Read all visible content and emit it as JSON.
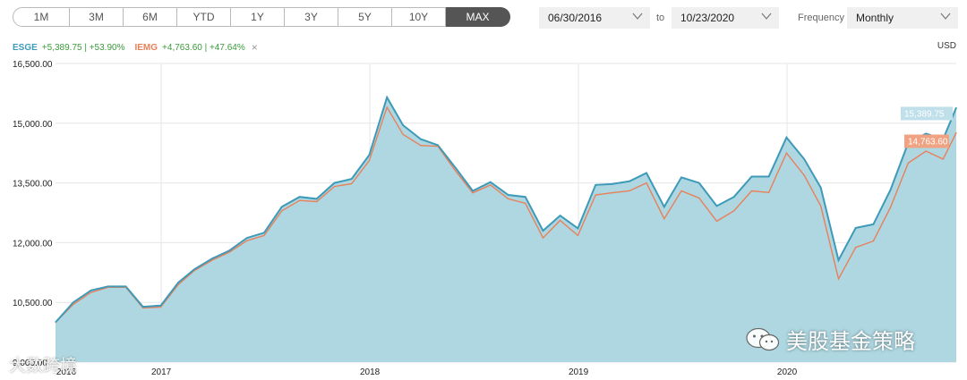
{
  "range_buttons": [
    "1M",
    "3M",
    "6M",
    "YTD",
    "1Y",
    "3Y",
    "5Y",
    "10Y",
    "MAX"
  ],
  "active_range": "MAX",
  "date_from": "06/30/2016",
  "to_label": "to",
  "date_to": "10/23/2020",
  "frequency_label": "Frequency",
  "frequency_value": "Monthly",
  "currency": "USD",
  "legend": {
    "esge_name": "ESGE",
    "esge_stats": "+5,389.75 | +53.90%",
    "iemg_name": "IEMG",
    "iemg_stats": "+4,763.60 | +47.64%",
    "close_symbol": "×"
  },
  "watermark": {
    "left_text": "大数跨境",
    "right_text": "美股基金策略"
  },
  "colors": {
    "esge": "#3d9ab8",
    "iemg": "#e8805a",
    "area": "#aed7e1"
  },
  "chart_data": {
    "type": "area",
    "ylim": [
      9000,
      16500
    ],
    "y_ticks": [
      9000,
      10500,
      12000,
      13500,
      15000,
      16500
    ],
    "y_tick_labels": [
      "9,000.00",
      "10,500.00",
      "12,000.00",
      "13,500.00",
      "15,000.00",
      "16,500.00"
    ],
    "x_tick_labels": [
      "2016",
      "2017",
      "2018",
      "2019",
      "2020"
    ],
    "x_tick_dates": [
      "2016-06-30",
      "2017-01-01",
      "2018-01-01",
      "2019-01-01",
      "2020-01-01"
    ],
    "xlim": [
      "2016-06-30",
      "2020-10-23"
    ],
    "dates": [
      "2016-06-30",
      "2016-07-31",
      "2016-08-31",
      "2016-09-30",
      "2016-10-31",
      "2016-11-30",
      "2016-12-31",
      "2017-01-31",
      "2017-02-28",
      "2017-03-31",
      "2017-04-30",
      "2017-05-31",
      "2017-06-30",
      "2017-07-31",
      "2017-08-31",
      "2017-09-30",
      "2017-10-31",
      "2017-11-30",
      "2017-12-31",
      "2018-01-31",
      "2018-02-28",
      "2018-03-31",
      "2018-04-30",
      "2018-05-31",
      "2018-06-30",
      "2018-07-31",
      "2018-08-31",
      "2018-09-30",
      "2018-10-31",
      "2018-11-30",
      "2018-12-31",
      "2019-01-31",
      "2019-02-28",
      "2019-03-31",
      "2019-04-30",
      "2019-05-31",
      "2019-06-30",
      "2019-07-31",
      "2019-08-31",
      "2019-09-30",
      "2019-10-31",
      "2019-11-30",
      "2019-12-31",
      "2020-01-31",
      "2020-02-29",
      "2020-03-31",
      "2020-04-30",
      "2020-05-31",
      "2020-06-30",
      "2020-07-31",
      "2020-08-31",
      "2020-09-30",
      "2020-10-23"
    ],
    "series": [
      {
        "name": "ESGE",
        "values": [
          10000,
          10500,
          10800,
          10900,
          10900,
          10390,
          10420,
          11000,
          11330,
          11600,
          11800,
          12120,
          12250,
          12900,
          13150,
          13100,
          13500,
          13600,
          14200,
          15650,
          14950,
          14600,
          14450,
          13880,
          13300,
          13520,
          13200,
          13150,
          12300,
          12680,
          12360,
          13450,
          13470,
          13540,
          13750,
          12900,
          13640,
          13500,
          12920,
          13150,
          13660,
          13660,
          14640,
          14100,
          13380,
          11560,
          12370,
          12460,
          13330,
          14510,
          14740,
          14600,
          15390
        ]
      },
      {
        "name": "IEMG",
        "values": [
          10000,
          10450,
          10750,
          10880,
          10880,
          10360,
          10380,
          10950,
          11300,
          11560,
          11760,
          12050,
          12180,
          12800,
          13060,
          13030,
          13410,
          13480,
          14060,
          15400,
          14720,
          14440,
          14420,
          13800,
          13250,
          13450,
          13100,
          12990,
          12120,
          12560,
          12180,
          13200,
          13250,
          13300,
          13500,
          12600,
          13300,
          13120,
          12540,
          12800,
          13300,
          13260,
          14250,
          13690,
          12920,
          11090,
          11880,
          12040,
          12890,
          14000,
          14300,
          14100,
          14760
        ]
      }
    ],
    "end_labels": [
      "15,389.75",
      "14,763.60"
    ]
  }
}
